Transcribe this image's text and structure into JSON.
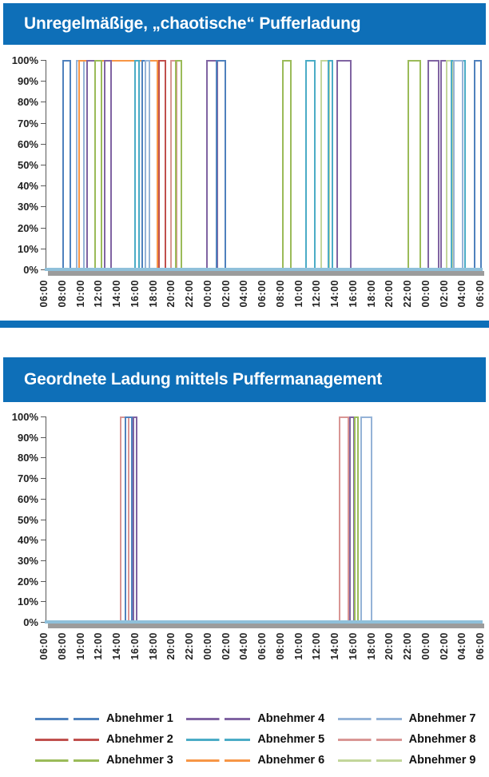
{
  "palette": {
    "Abnehmer 1": "#4F81BD",
    "Abnehmer 2": "#C0504D",
    "Abnehmer 3": "#9BBB59",
    "Abnehmer 4": "#8064A2",
    "Abnehmer 5": "#4BACC6",
    "Abnehmer 6": "#F79646",
    "Abnehmer 7": "#95B3D7",
    "Abnehmer 8": "#D99694",
    "Abnehmer 9": "#C3D69B"
  },
  "theme": {
    "header_blue": "#0E6FB8",
    "axis_gray": "#5A5A5A",
    "zero_line_blue": "#8FC0DA",
    "shadow_gray": "#9C9C9C"
  },
  "chart_data": [
    {
      "type": "line",
      "id": "chaotic",
      "title": "Unregelmäßige, „chaotische“ Pufferladung",
      "ylabel": "",
      "xlabel": "",
      "ylim": [
        0,
        1
      ],
      "y_ticks": [
        "100%",
        "90%",
        "80%",
        "70%",
        "60%",
        "50%",
        "40%",
        "30%",
        "20%",
        "10%",
        "0%"
      ],
      "x_ticks": [
        "06:00",
        "08:00",
        "10:00",
        "12:00",
        "14:00",
        "16:00",
        "18:00",
        "20:00",
        "22:00",
        "00:00",
        "02:00",
        "04:00",
        "06:00",
        "08:00",
        "10:00",
        "12:00",
        "14:00",
        "16:00",
        "18:00",
        "20:00",
        "22:00",
        "00:00",
        "02:00",
        "04:00",
        "06:00"
      ],
      "x_start_label": "06:00",
      "hours_total": 48,
      "grid": false,
      "pulses": [
        {
          "series": "Abnehmer 1",
          "start_h": 1.8,
          "end_h": 2.85
        },
        {
          "series": "Abnehmer 7",
          "start_h": 3.3,
          "end_h": 4.3
        },
        {
          "series": "Abnehmer 6",
          "start_h": 3.6,
          "end_h": 12.4
        },
        {
          "series": "Abnehmer 4",
          "start_h": 4.5,
          "end_h": 5.5
        },
        {
          "series": "Abnehmer 3",
          "start_h": 5.4,
          "end_h": 6.25
        },
        {
          "series": "Abnehmer 4",
          "start_h": 6.45,
          "end_h": 7.3
        },
        {
          "series": "Abnehmer 5",
          "start_h": 9.75,
          "end_h": 10.4
        },
        {
          "series": "Abnehmer 1",
          "start_h": 10.55,
          "end_h": 11.1
        },
        {
          "series": "Abnehmer 7",
          "start_h": 10.9,
          "end_h": 11.5
        },
        {
          "series": "Abnehmer 2",
          "start_h": 12.4,
          "end_h": 13.3
        },
        {
          "series": "Abnehmer 8",
          "start_h": 13.7,
          "end_h": 14.5
        },
        {
          "series": "Abnehmer 3",
          "start_h": 14.2,
          "end_h": 15.05
        },
        {
          "series": "Abnehmer 4",
          "start_h": 17.7,
          "end_h": 19.0
        },
        {
          "series": "Abnehmer 1",
          "start_h": 18.75,
          "end_h": 19.9
        },
        {
          "series": "Abnehmer 3",
          "start_h": 26.0,
          "end_h": 27.1
        },
        {
          "series": "Abnehmer 5",
          "start_h": 28.6,
          "end_h": 29.7
        },
        {
          "series": "Abnehmer 9",
          "start_h": 30.2,
          "end_h": 31.3
        },
        {
          "series": "Abnehmer 5",
          "start_h": 31.05,
          "end_h": 31.65
        },
        {
          "series": "Abnehmer 4",
          "start_h": 32.0,
          "end_h": 33.7
        },
        {
          "series": "Abnehmer 3",
          "start_h": 39.8,
          "end_h": 41.3
        },
        {
          "series": "Abnehmer 4",
          "start_h": 42.0,
          "end_h": 43.3
        },
        {
          "series": "Abnehmer 4",
          "start_h": 43.4,
          "end_h": 44.25
        },
        {
          "series": "Abnehmer 9",
          "start_h": 44.0,
          "end_h": 44.95
        },
        {
          "series": "Abnehmer 5",
          "start_h": 44.55,
          "end_h": 46.2
        },
        {
          "series": "Abnehmer 7",
          "start_h": 44.85,
          "end_h": 45.95
        },
        {
          "series": "Abnehmer 1",
          "start_h": 47.15,
          "end_h": 48.0
        }
      ]
    },
    {
      "type": "line",
      "id": "managed",
      "title": "Geordnete Ladung mittels Puffermanagement",
      "ylabel": "",
      "xlabel": "",
      "ylim": [
        0,
        1
      ],
      "y_ticks": [
        "100%",
        "90%",
        "80%",
        "70%",
        "60%",
        "50%",
        "40%",
        "30%",
        "20%",
        "10%",
        "0%"
      ],
      "x_ticks": [
        "06:00",
        "08:00",
        "10:00",
        "12:00",
        "14:00",
        "16:00",
        "18:00",
        "20:00",
        "22:00",
        "00:00",
        "02:00",
        "04:00",
        "06:00",
        "08:00",
        "10:00",
        "12:00",
        "14:00",
        "16:00",
        "18:00",
        "20:00",
        "22:00",
        "00:00",
        "02:00",
        "04:00",
        "06:00"
      ],
      "x_start_label": "06:00",
      "hours_total": 48,
      "grid": false,
      "pulses": [
        {
          "series": "Abnehmer 8",
          "start_h": 8.2,
          "end_h": 9.25
        },
        {
          "series": "Abnehmer 1",
          "start_h": 8.7,
          "end_h": 9.6
        },
        {
          "series": "Abnehmer 4",
          "start_h": 9.6,
          "end_h": 10.1
        },
        {
          "series": "Abnehmer 8",
          "start_h": 32.3,
          "end_h": 33.4
        },
        {
          "series": "Abnehmer 4",
          "start_h": 33.4,
          "end_h": 34.0
        },
        {
          "series": "Abnehmer 3",
          "start_h": 33.95,
          "end_h": 34.5
        },
        {
          "series": "Abnehmer 7",
          "start_h": 34.6,
          "end_h": 36.0
        }
      ]
    }
  ],
  "legend": {
    "items": [
      {
        "label": "Abnehmer 1",
        "color": "#4F81BD"
      },
      {
        "label": "Abnehmer 2",
        "color": "#C0504D"
      },
      {
        "label": "Abnehmer 3",
        "color": "#9BBB59"
      },
      {
        "label": "Abnehmer 4",
        "color": "#8064A2"
      },
      {
        "label": "Abnehmer 5",
        "color": "#4BACC6"
      },
      {
        "label": "Abnehmer 6",
        "color": "#F79646"
      },
      {
        "label": "Abnehmer 7",
        "color": "#95B3D7"
      },
      {
        "label": "Abnehmer 8",
        "color": "#D99694"
      },
      {
        "label": "Abnehmer 9",
        "color": "#C3D69B"
      }
    ],
    "columns": 3
  }
}
